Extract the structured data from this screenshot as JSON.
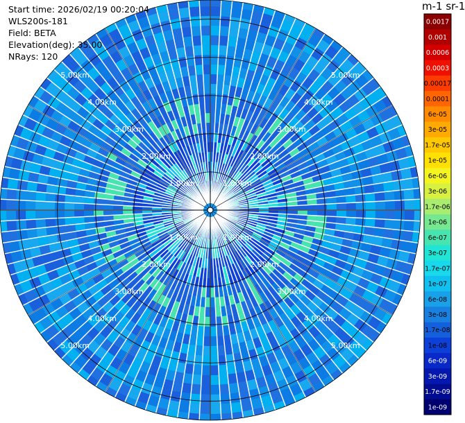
{
  "header": {
    "start_time": "Start time: 2026/02/19 00:20:04",
    "instrument": "WLS200s-181",
    "field": "Field: BETA",
    "elevation": "Elevation(deg): 35.00",
    "nrays": "NRays: 120"
  },
  "colorbar": {
    "unit_label": "m-1 sr-1",
    "ticks": [
      "0.0017",
      "0.001",
      "0.0006",
      "0.0003",
      "0.00017",
      "0.0001",
      "6e-05",
      "3e-05",
      "1.7e-05",
      "1e-05",
      "6e-06",
      "3e-06",
      "1.7e-06",
      "1e-06",
      "6e-07",
      "3e-07",
      "1.7e-07",
      "1e-07",
      "6e-08",
      "3e-08",
      "1.7e-08",
      "1e-08",
      "6e-09",
      "3e-09",
      "1.7e-09",
      "1e-09"
    ],
    "colors": [
      "#8b0000",
      "#b00000",
      "#d40000",
      "#f01000",
      "#ff3c00",
      "#ff6600",
      "#ff8c00",
      "#ffaa00",
      "#ffc800",
      "#ffe000",
      "#f4f420",
      "#d8f040",
      "#a8ec70",
      "#78e890",
      "#48e4b0",
      "#20e4d4",
      "#18d8ec",
      "#10c0f0",
      "#18a0e8",
      "#1880e0",
      "#1460dc",
      "#0c40d8",
      "#0828c8",
      "#0418b0",
      "#020c90",
      "#000070"
    ],
    "label_colors": [
      "#ffffff",
      "#ffffff",
      "#ffffff",
      "#ffffff",
      "#000000",
      "#000000",
      "#000000",
      "#000000",
      "#000000",
      "#000000",
      "#000000",
      "#000000",
      "#000000",
      "#000000",
      "#000000",
      "#000000",
      "#000000",
      "#000000",
      "#000000",
      "#000000",
      "#000000",
      "#000000",
      "#ffffff",
      "#ffffff",
      "#ffffff",
      "#ffffff"
    ]
  },
  "chart_data": {
    "type": "ppi-polar-scan",
    "field": "BETA",
    "elevation_deg": 35.0,
    "n_rays": 120,
    "max_range_km": 5.5,
    "range_rings_km": [
      1,
      2,
      3,
      4,
      5
    ],
    "ring_labels": [
      "1.00km",
      "2.00km",
      "3.00km",
      "4.00km",
      "5.00km"
    ],
    "value_range": [
      1e-09,
      0.0017
    ],
    "dominant_range": [
      1e-08,
      1.7e-07
    ]
  }
}
